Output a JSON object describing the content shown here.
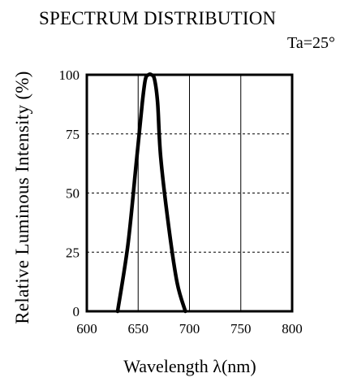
{
  "chart_data": {
    "type": "line",
    "title": "SPECTRUM DISTRIBUTION",
    "condition": "Ta=25°",
    "xlabel": "Wavelength λ(nm)",
    "ylabel": "Relative Luminous Intensity (%)",
    "xlim": [
      600,
      800
    ],
    "ylim": [
      0,
      100
    ],
    "x_ticks": [
      "600",
      "650",
      "700",
      "750",
      "800"
    ],
    "y_ticks": [
      "0",
      "25",
      "50",
      "75",
      "100"
    ],
    "grid": true,
    "series": [
      {
        "x": [
          630,
          640,
          648,
          654,
          657,
          660,
          663,
          666,
          669,
          672,
          680,
          688,
          696
        ],
        "y": [
          0,
          28,
          62,
          88,
          98,
          100,
          100,
          98,
          88,
          65,
          35,
          12,
          0
        ],
        "color": "#000000"
      }
    ]
  }
}
